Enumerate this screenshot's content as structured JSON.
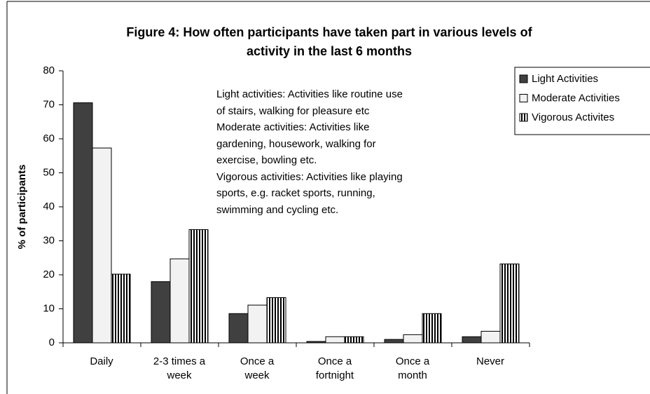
{
  "chart_data": {
    "type": "bar",
    "title": "Figure 4: How often participants have taken part in various levels of\nactivity in the last 6 months",
    "y_label": "% of participants",
    "annotation": "Light activities: Activities like routine use\nof stairs, walking for pleasure etc\nModerate activities: Activities like\ngardening, housework, walking for\nexercise, bowling etc.\nVigorous activities: Activities like playing\nsports, e.g. racket sports, running,\nswimming and cycling etc.",
    "categories": [
      "Daily",
      "2-3 times a\nweek",
      "Once a\nweek",
      "Once a\nfortnight",
      "Once a\nmonth",
      "Never"
    ],
    "series": [
      {
        "name": "Light Activities",
        "color": "#404040",
        "values": [
          70.6,
          18,
          8.6,
          0.4,
          1,
          1.8
        ]
      },
      {
        "name": "Moderate Activities",
        "color": "#f2f2f2",
        "values": [
          57.3,
          24.7,
          11.1,
          1.8,
          2.4,
          3.4
        ]
      },
      {
        "name": "Vigorous Activites",
        "color": "#ffffff",
        "pattern": "vertical-stripes",
        "values": [
          20.2,
          33.3,
          13.3,
          1.8,
          8.6,
          23.2
        ]
      }
    ],
    "ylim": [
      0,
      80
    ],
    "yticks": [
      0,
      10,
      20,
      30,
      40,
      50,
      60,
      70,
      80
    ],
    "grid": false,
    "legend": "right"
  }
}
